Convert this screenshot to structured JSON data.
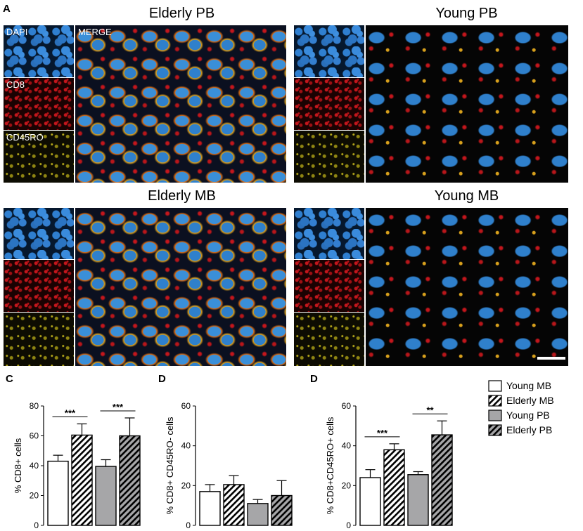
{
  "panel_a": {
    "letter": "A",
    "groups": [
      {
        "title": "Elderly PB",
        "labels": [
          "DAPI",
          "CD8",
          "CD45RO",
          "MERGE"
        ]
      },
      {
        "title": "Young PB",
        "labels": [
          "",
          "",
          "",
          ""
        ]
      },
      {
        "title": "Elderly MB",
        "labels": [
          "",
          "",
          "",
          ""
        ]
      },
      {
        "title": "Young MB",
        "labels": [
          "",
          "",
          "",
          ""
        ]
      }
    ]
  },
  "legend": {
    "entries": [
      {
        "name": "Young MB",
        "fill": "#ffffff",
        "hatched": false
      },
      {
        "name": "Elderly MB",
        "fill": "#ffffff",
        "hatched": true
      },
      {
        "name": "Young PB",
        "fill": "#a6a6a8",
        "hatched": false
      },
      {
        "name": "Elderly PB",
        "fill": "#a6a6a8",
        "hatched": true
      }
    ]
  },
  "chart_data": [
    {
      "type": "bar",
      "panel": "C",
      "ylabel": "% CD8+ cells",
      "ylim": [
        0,
        80
      ],
      "yticks": [
        0,
        20,
        40,
        60,
        80
      ],
      "categories": [
        "Young MB",
        "Elderly MB",
        "Young PB",
        "Elderly PB"
      ],
      "values": [
        43,
        60.5,
        39.5,
        60
      ],
      "errors": [
        4,
        7.5,
        4.5,
        12
      ],
      "significance": [
        {
          "pair": [
            0,
            1
          ],
          "label": "***"
        },
        {
          "pair": [
            2,
            3
          ],
          "label": "***"
        }
      ]
    },
    {
      "type": "bar",
      "panel": "D",
      "ylabel": "% CD8+ CD45RO- cells",
      "ylim": [
        0,
        60
      ],
      "yticks": [
        0,
        20,
        40,
        60
      ],
      "categories": [
        "Young MB",
        "Elderly MB",
        "Young PB",
        "Elderly PB"
      ],
      "values": [
        17,
        20.5,
        11,
        15
      ],
      "errors": [
        3.5,
        4.5,
        2,
        7.5
      ],
      "significance": []
    },
    {
      "type": "bar",
      "panel": "D",
      "ylabel": "% CD8+CD45RO+ cells",
      "ylim": [
        0,
        60
      ],
      "yticks": [
        0,
        20,
        40,
        60
      ],
      "categories": [
        "Young MB",
        "Elderly MB",
        "Young PB",
        "Elderly PB"
      ],
      "values": [
        24,
        38,
        25.5,
        45.5
      ],
      "errors": [
        4,
        3,
        1.5,
        7
      ],
      "significance": [
        {
          "pair": [
            0,
            1
          ],
          "label": "***"
        },
        {
          "pair": [
            2,
            3
          ],
          "label": "**"
        }
      ]
    }
  ]
}
